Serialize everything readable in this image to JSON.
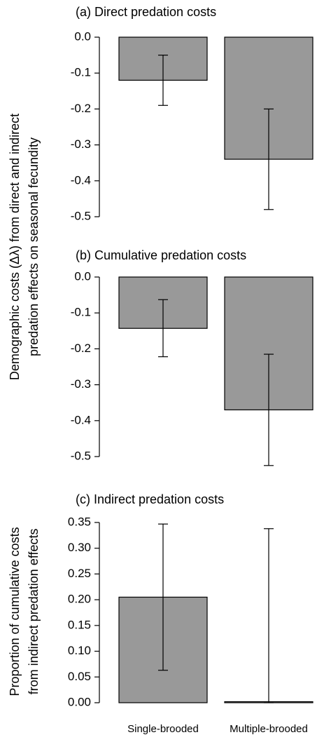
{
  "chart_data": [
    {
      "type": "bar",
      "title": "(a) Direct predation costs",
      "ylabel": [
        "Demographic costs (Δλ) from direct and indirect",
        "predation effects on seasonal fecundity"
      ],
      "values": [
        -0.12,
        -0.34
      ],
      "error_low": [
        -0.19,
        -0.48
      ],
      "error_high": [
        -0.05,
        -0.2
      ],
      "color": "#999999",
      "ylim": [
        -0.5,
        0
      ],
      "yticks": [
        {
          "value": 0,
          "label": "0.0"
        },
        -0.1,
        -0.2,
        -0.3,
        -0.4,
        -0.5
      ]
    },
    {
      "type": "bar",
      "title": "(b) Cumulative predation costs",
      "values": [
        -0.143,
        -0.37
      ],
      "error_low": [
        -0.222,
        -0.525
      ],
      "error_high": [
        -0.063,
        -0.215
      ],
      "color": "#999999",
      "ylim": [
        -0.5,
        0
      ],
      "yticks": [
        {
          "value": 0,
          "label": "0.0"
        },
        -0.1,
        -0.2,
        -0.3,
        -0.4,
        -0.5
      ]
    },
    {
      "type": "bar",
      "title": "(c) Indirect predation costs",
      "ylabel": [
        "Proportion of cumulative costs",
        "from indirect predation effects"
      ],
      "categories": [
        "Single-brooded",
        "Multiple-brooded"
      ],
      "values": [
        0.205,
        0.002
      ],
      "error_low": [
        0.063,
        0
      ],
      "error_high": [
        0.347,
        0.338
      ],
      "color": "#999999",
      "ylim": [
        0,
        0.35
      ],
      "yticks": [
        {
          "value": 0,
          "label": "0.00"
        },
        0.05,
        {
          "value": 0.1,
          "label": "0.10"
        },
        0.15,
        {
          "value": 0.2,
          "label": "0.20"
        },
        0.25,
        {
          "value": 0.3,
          "label": "0.30"
        },
        0.35
      ]
    }
  ]
}
